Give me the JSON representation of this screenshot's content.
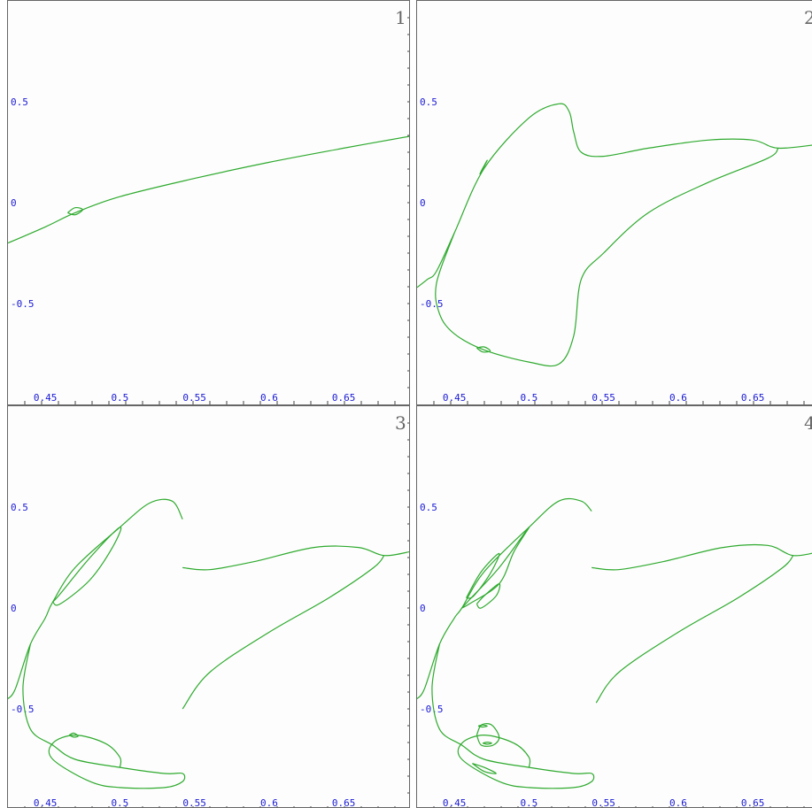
{
  "colors": {
    "curve": "#2eaa2e",
    "tick_label": "#1a1ad6",
    "frame": "#666666",
    "panel_number": "#666666"
  },
  "chart_data": [
    {
      "type": "line",
      "panel_label": "1",
      "xlim": [
        0.425,
        0.695
      ],
      "ylim": [
        -1.0,
        1.0
      ],
      "xticks": [
        "0.45",
        "0.5",
        "0.55",
        "0.6",
        "0.65"
      ],
      "yticks": [
        "0.5",
        "0",
        "-0.5"
      ],
      "series": [
        {
          "values": [
            [
              0.425,
              -0.2
            ],
            [
              0.45,
              -0.12
            ],
            [
              0.47,
              -0.05
            ],
            [
              0.5,
              0.03
            ],
            [
              0.55,
              0.12
            ],
            [
              0.6,
              0.2
            ],
            [
              0.65,
              0.27
            ],
            [
              0.695,
              0.33
            ]
          ]
        },
        {
          "values": [
            [
              0.465,
              -0.05
            ],
            [
              0.47,
              -0.025
            ],
            [
              0.475,
              -0.035
            ],
            [
              0.47,
              -0.06
            ],
            [
              0.465,
              -0.05
            ]
          ]
        }
      ]
    },
    {
      "type": "line",
      "panel_label": "2",
      "xlim": [
        0.425,
        0.695
      ],
      "ylim": [
        -1.0,
        1.0
      ],
      "xticks": [
        "0.45",
        "0.5",
        "0.55",
        "0.6",
        "0.65"
      ],
      "yticks": [
        "0.5",
        "0",
        "-0.5"
      ],
      "series": [
        {
          "values": [
            [
              0.425,
              -0.42
            ],
            [
              0.432,
              -0.38
            ],
            [
              0.438,
              -0.34
            ],
            [
              0.45,
              -0.15
            ],
            [
              0.47,
              0.17
            ],
            [
              0.5,
              0.42
            ],
            [
              0.52,
              0.49
            ],
            [
              0.527,
              0.45
            ],
            [
              0.53,
              0.35
            ],
            [
              0.535,
              0.25
            ],
            [
              0.55,
              0.23
            ],
            [
              0.58,
              0.27
            ],
            [
              0.62,
              0.31
            ],
            [
              0.65,
              0.31
            ],
            [
              0.667,
              0.27
            ],
            [
              0.695,
              0.29
            ]
          ]
        },
        {
          "values": [
            [
              0.667,
              0.27
            ],
            [
              0.66,
              0.22
            ],
            [
              0.62,
              0.1
            ],
            [
              0.58,
              -0.05
            ],
            [
              0.55,
              -0.25
            ],
            [
              0.535,
              -0.38
            ],
            [
              0.53,
              -0.66
            ],
            [
              0.52,
              -0.8
            ],
            [
              0.5,
              -0.79
            ],
            [
              0.47,
              -0.73
            ],
            [
              0.45,
              -0.65
            ],
            [
              0.44,
              -0.55
            ],
            [
              0.438,
              -0.4
            ],
            [
              0.45,
              -0.15
            ]
          ]
        },
        {
          "values": [
            [
              0.467,
              0.14
            ],
            [
              0.47,
              0.18
            ],
            [
              0.472,
              0.21
            ],
            [
              0.469,
              0.17
            ],
            [
              0.467,
              0.14
            ]
          ]
        },
        {
          "values": [
            [
              0.465,
              -0.72
            ],
            [
              0.47,
              -0.715
            ],
            [
              0.474,
              -0.735
            ],
            [
              0.469,
              -0.74
            ],
            [
              0.465,
              -0.72
            ]
          ]
        }
      ]
    },
    {
      "type": "line",
      "panel_label": "3",
      "xlim": [
        0.425,
        0.695
      ],
      "ylim": [
        -1.0,
        1.0
      ],
      "xticks": [
        "0.45",
        "0.5",
        "0.55",
        "0.6",
        "0.65"
      ],
      "yticks": [
        "0.5",
        "0",
        "-0.5"
      ],
      "series": [
        {
          "values": [
            [
              0.425,
              -0.45
            ],
            [
              0.43,
              -0.4
            ],
            [
              0.44,
              -0.18
            ],
            [
              0.45,
              -0.05
            ],
            [
              0.455,
              0.03
            ],
            [
              0.47,
              0.2
            ],
            [
              0.5,
              0.4
            ],
            [
              0.52,
              0.52
            ],
            [
              0.535,
              0.53
            ],
            [
              0.542,
              0.44
            ]
          ]
        },
        {
          "values": [
            [
              0.455,
              0.03
            ],
            [
              0.46,
              0.07
            ],
            [
              0.48,
              0.25
            ],
            [
              0.5,
              0.4
            ],
            [
              0.495,
              0.3
            ],
            [
              0.48,
              0.14
            ],
            [
              0.46,
              0.02
            ],
            [
              0.455,
              0.03
            ]
          ]
        },
        {
          "values": [
            [
              0.542,
              0.2
            ],
            [
              0.56,
              0.19
            ],
            [
              0.59,
              0.23
            ],
            [
              0.63,
              0.3
            ],
            [
              0.66,
              0.3
            ],
            [
              0.677,
              0.26
            ],
            [
              0.695,
              0.28
            ]
          ]
        },
        {
          "values": [
            [
              0.677,
              0.26
            ],
            [
              0.67,
              0.2
            ],
            [
              0.64,
              0.05
            ],
            [
              0.6,
              -0.12
            ],
            [
              0.56,
              -0.32
            ],
            [
              0.542,
              -0.5
            ]
          ]
        },
        {
          "values": [
            [
              0.44,
              -0.18
            ],
            [
              0.435,
              -0.4
            ],
            [
              0.44,
              -0.6
            ],
            [
              0.455,
              -0.68
            ],
            [
              0.47,
              -0.75
            ],
            [
              0.5,
              -0.79
            ],
            [
              0.53,
              -0.82
            ],
            [
              0.542,
              -0.82
            ],
            [
              0.542,
              -0.86
            ],
            [
              0.53,
              -0.89
            ],
            [
              0.5,
              -0.89
            ],
            [
              0.48,
              -0.86
            ],
            [
              0.455,
              -0.75
            ],
            [
              0.455,
              -0.67
            ],
            [
              0.47,
              -0.63
            ],
            [
              0.49,
              -0.67
            ],
            [
              0.5,
              -0.74
            ],
            [
              0.5,
              -0.79
            ]
          ]
        },
        {
          "values": [
            [
              0.466,
              -0.63
            ],
            [
              0.469,
              -0.62
            ],
            [
              0.472,
              -0.635
            ],
            [
              0.469,
              -0.64
            ],
            [
              0.466,
              -0.63
            ]
          ]
        }
      ]
    },
    {
      "type": "line",
      "panel_label": "4",
      "xlim": [
        0.425,
        0.695
      ],
      "ylim": [
        -1.0,
        1.0
      ],
      "xticks": [
        "0.45",
        "0.5",
        "0.55",
        "0.6",
        "0.65"
      ],
      "yticks": [
        "0.5",
        "0",
        "-0.5"
      ],
      "series": [
        {
          "values": [
            [
              0.425,
              -0.45
            ],
            [
              0.43,
              -0.4
            ],
            [
              0.44,
              -0.18
            ],
            [
              0.45,
              -0.05
            ],
            [
              0.455,
              0.0
            ],
            [
              0.47,
              0.18
            ],
            [
              0.5,
              0.4
            ],
            [
              0.52,
              0.53
            ],
            [
              0.535,
              0.53
            ],
            [
              0.542,
              0.48
            ]
          ]
        },
        {
          "values": [
            [
              0.455,
              0.0
            ],
            [
              0.46,
              0.04
            ],
            [
              0.48,
              0.2
            ],
            [
              0.5,
              0.4
            ],
            [
              0.49,
              0.28
            ],
            [
              0.48,
              0.12
            ],
            [
              0.46,
              0.02
            ],
            [
              0.455,
              0.0
            ]
          ]
        },
        {
          "values": [
            [
              0.458,
              0.05
            ],
            [
              0.468,
              0.18
            ],
            [
              0.48,
              0.27
            ],
            [
              0.474,
              0.17
            ],
            [
              0.463,
              0.06
            ],
            [
              0.458,
              0.05
            ]
          ]
        },
        {
          "values": [
            [
              0.465,
              0.02
            ],
            [
              0.47,
              0.06
            ],
            [
              0.48,
              0.12
            ],
            [
              0.478,
              0.06
            ],
            [
              0.468,
              0.0
            ],
            [
              0.465,
              0.02
            ]
          ]
        },
        {
          "values": [
            [
              0.542,
              0.2
            ],
            [
              0.56,
              0.19
            ],
            [
              0.59,
              0.23
            ],
            [
              0.63,
              0.3
            ],
            [
              0.66,
              0.31
            ],
            [
              0.677,
              0.26
            ],
            [
              0.695,
              0.28
            ]
          ]
        },
        {
          "values": [
            [
              0.677,
              0.26
            ],
            [
              0.67,
              0.2
            ],
            [
              0.64,
              0.05
            ],
            [
              0.6,
              -0.12
            ],
            [
              0.56,
              -0.32
            ],
            [
              0.545,
              -0.47
            ]
          ]
        },
        {
          "values": [
            [
              0.44,
              -0.18
            ],
            [
              0.435,
              -0.4
            ],
            [
              0.44,
              -0.6
            ],
            [
              0.455,
              -0.68
            ],
            [
              0.47,
              -0.75
            ],
            [
              0.5,
              -0.79
            ],
            [
              0.53,
              -0.82
            ],
            [
              0.542,
              -0.82
            ],
            [
              0.542,
              -0.86
            ],
            [
              0.53,
              -0.89
            ],
            [
              0.5,
              -0.89
            ],
            [
              0.48,
              -0.86
            ],
            [
              0.455,
              -0.75
            ],
            [
              0.455,
              -0.67
            ],
            [
              0.47,
              -0.63
            ],
            [
              0.49,
              -0.67
            ],
            [
              0.5,
              -0.74
            ],
            [
              0.5,
              -0.79
            ]
          ]
        },
        {
          "values": [
            [
              0.465,
              -0.63
            ],
            [
              0.468,
              -0.58
            ],
            [
              0.475,
              -0.58
            ],
            [
              0.48,
              -0.64
            ],
            [
              0.476,
              -0.68
            ],
            [
              0.468,
              -0.68
            ],
            [
              0.465,
              -0.63
            ]
          ]
        },
        {
          "values": [
            [
              0.466,
              -0.585
            ],
            [
              0.469,
              -0.58
            ],
            [
              0.472,
              -0.585
            ],
            [
              0.469,
              -0.59
            ],
            [
              0.466,
              -0.585
            ]
          ]
        },
        {
          "values": [
            [
              0.469,
              -0.67
            ],
            [
              0.472,
              -0.665
            ],
            [
              0.475,
              -0.67
            ],
            [
              0.472,
              -0.675
            ],
            [
              0.469,
              -0.67
            ]
          ]
        },
        {
          "values": [
            [
              0.462,
              -0.77
            ],
            [
              0.47,
              -0.79
            ],
            [
              0.478,
              -0.82
            ],
            [
              0.47,
              -0.81
            ],
            [
              0.462,
              -0.77
            ]
          ]
        }
      ]
    }
  ]
}
